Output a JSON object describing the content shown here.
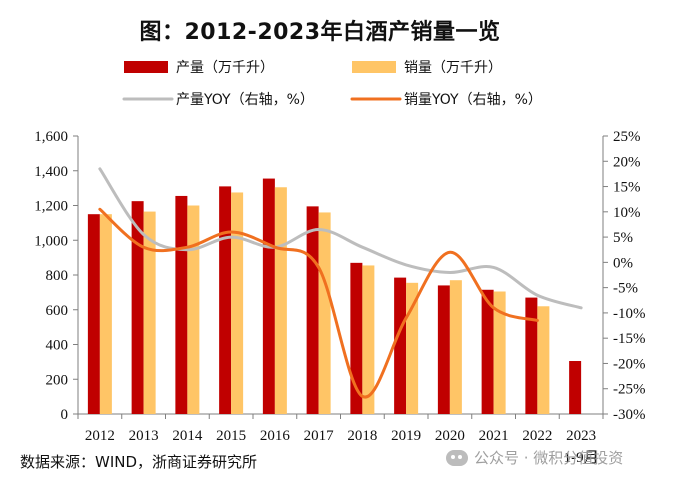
{
  "chart_data": {
    "type": "bar",
    "title": "图：2012-2023年白酒产销量一览",
    "categories": [
      "2012",
      "2013",
      "2014",
      "2015",
      "2016",
      "2017",
      "2018",
      "2019",
      "2020",
      "2021",
      "2022",
      "2023"
    ],
    "category_note": "1-9月",
    "series": [
      {
        "name": "产量（万千升）",
        "kind": "bar",
        "axis": "left",
        "color": "#C00000",
        "values": [
          1150,
          1225,
          1255,
          1310,
          1355,
          1195,
          870,
          785,
          740,
          715,
          670,
          305
        ]
      },
      {
        "name": "销量（万千升）",
        "kind": "bar",
        "axis": "left",
        "color": "#FFC566",
        "values": [
          1150,
          1165,
          1200,
          1275,
          1305,
          1160,
          855,
          755,
          770,
          705,
          620,
          null
        ]
      },
      {
        "name": "产量YOY（右轴，%）",
        "kind": "line",
        "axis": "right",
        "color": "#BDBDBD",
        "values": [
          18.5,
          5.5,
          2.5,
          5.0,
          3.0,
          6.5,
          3.0,
          -0.5,
          -2.0,
          -1.0,
          -6.5,
          -9.0
        ]
      },
      {
        "name": "销量YOY（右轴，%）",
        "kind": "line",
        "axis": "right",
        "color": "#F07020",
        "values": [
          10.5,
          3.0,
          3.0,
          6.0,
          3.0,
          -1.0,
          -26.5,
          -11.0,
          2.0,
          -9.0,
          -11.5,
          null
        ]
      }
    ],
    "left_axis": {
      "min": 0,
      "max": 1600,
      "step": 200,
      "tick_labels": [
        "0",
        "200",
        "400",
        "600",
        "800",
        "1,000",
        "1,200",
        "1,400",
        "1,600"
      ]
    },
    "right_axis": {
      "min": -30,
      "max": 25,
      "step": 5,
      "tick_labels": [
        "-30%",
        "-25%",
        "-20%",
        "-15%",
        "-10%",
        "-5%",
        "0%",
        "5%",
        "10%",
        "15%",
        "20%",
        "25%"
      ]
    },
    "legend_position": "top",
    "grid": false
  },
  "footer": {
    "source": "数据来源：WIND，浙商证券研究所",
    "watermark": "公众号 · 微积分值投资"
  },
  "colors": {
    "axis": "#7f7f7f",
    "text": "#111111"
  }
}
